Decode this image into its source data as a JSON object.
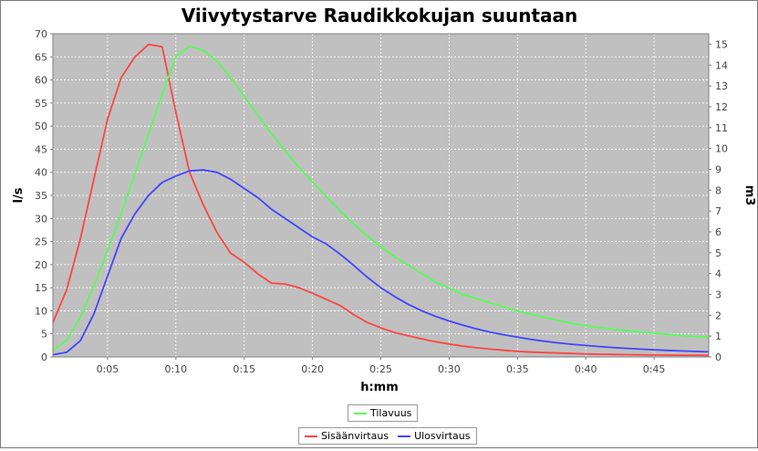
{
  "chart_data": {
    "type": "line",
    "title": "Viivytystarve Raudikkokujan suuntaan",
    "xlabel": "h:mm",
    "ylabel_left": "l/s",
    "ylabel_right": "m3",
    "x_unit": "minutes",
    "xlim": [
      1,
      49
    ],
    "ylim_left": [
      0,
      70
    ],
    "ylim_right": [
      0,
      15.5
    ],
    "xticks": [
      5,
      10,
      15,
      20,
      25,
      30,
      35,
      40,
      45
    ],
    "xtick_labels": [
      "0:05",
      "0:10",
      "0:15",
      "0:20",
      "0:25",
      "0:30",
      "0:35",
      "0:40",
      "0:45"
    ],
    "yticks_left": [
      0,
      5,
      10,
      15,
      20,
      25,
      30,
      35,
      40,
      45,
      50,
      55,
      60,
      65,
      70
    ],
    "yticks_right": [
      0,
      1,
      2,
      3,
      4,
      5,
      6,
      7,
      8,
      9,
      10,
      11,
      12,
      13,
      14,
      15
    ],
    "grid": true,
    "legend_position": "bottom",
    "series": [
      {
        "name": "Tilavuus",
        "axis": "right",
        "color": "#55ff55",
        "x": [
          1,
          2,
          3,
          4,
          5,
          6,
          7,
          8,
          9,
          10,
          11,
          12,
          13,
          14,
          15,
          16,
          17,
          18,
          19,
          20,
          21,
          22,
          23,
          24,
          25,
          26,
          27,
          28,
          29,
          30,
          31,
          32,
          33,
          34,
          35,
          36,
          37,
          38,
          39,
          40,
          41,
          42,
          43,
          44,
          45,
          46,
          47,
          48,
          49
        ],
        "y": [
          0.3,
          0.8,
          1.9,
          3.4,
          5.1,
          6.9,
          8.8,
          10.7,
          12.6,
          14.4,
          14.9,
          14.7,
          14.2,
          13.4,
          12.5,
          11.6,
          10.7,
          9.9,
          9.1,
          8.4,
          7.7,
          7.0,
          6.4,
          5.8,
          5.3,
          4.8,
          4.4,
          4.0,
          3.6,
          3.3,
          3.0,
          2.8,
          2.6,
          2.4,
          2.2,
          2.05,
          1.9,
          1.75,
          1.6,
          1.5,
          1.4,
          1.33,
          1.26,
          1.2,
          1.14,
          1.08,
          1.03,
          0.98,
          0.94
        ]
      },
      {
        "name": "Sisäänvirtaus",
        "axis": "left",
        "color": "#ff4444",
        "x": [
          1,
          2,
          3,
          4,
          5,
          6,
          7,
          8,
          9,
          10,
          11,
          12,
          13,
          14,
          15,
          16,
          17,
          18,
          19,
          20,
          21,
          22,
          23,
          24,
          25,
          26,
          27,
          28,
          29,
          30,
          31,
          32,
          33,
          34,
          35,
          36,
          37,
          38,
          39,
          40,
          41,
          42,
          43,
          44,
          45,
          46,
          47,
          48,
          49
        ],
        "y": [
          7.5,
          14.5,
          25.5,
          38.5,
          51.5,
          60.5,
          65,
          67.7,
          67.2,
          53,
          40,
          33,
          27,
          22.5,
          20.5,
          18,
          16,
          15.8,
          15,
          13.8,
          12.5,
          11.2,
          9.2,
          7.5,
          6.3,
          5.3,
          4.6,
          3.9,
          3.3,
          2.8,
          2.35,
          2,
          1.7,
          1.45,
          1.2,
          1.05,
          0.95,
          0.85,
          0.75,
          0.65,
          0.6,
          0.55,
          0.5,
          0.45,
          0.42,
          0.4,
          0.37,
          0.35,
          0.33
        ]
      },
      {
        "name": "Ulosvirtaus",
        "axis": "left",
        "color": "#4444ff",
        "x": [
          1,
          2,
          3,
          4,
          5,
          6,
          7,
          8,
          9,
          10,
          11,
          12,
          13,
          14,
          15,
          16,
          17,
          18,
          19,
          20,
          21,
          22,
          23,
          24,
          25,
          26,
          27,
          28,
          29,
          30,
          31,
          32,
          33,
          34,
          35,
          36,
          37,
          38,
          39,
          40,
          41,
          42,
          43,
          44,
          45,
          46,
          47,
          48,
          49
        ],
        "y": [
          0.5,
          1,
          3.5,
          9.3,
          17.5,
          25.7,
          31,
          35,
          37.8,
          39.2,
          40.3,
          40.5,
          40,
          38.5,
          36.5,
          34.5,
          32,
          30,
          28,
          26,
          24.5,
          22.3,
          19.9,
          17.3,
          15,
          13.1,
          11.4,
          10,
          8.8,
          7.8,
          6.9,
          6.1,
          5.4,
          4.8,
          4.3,
          3.8,
          3.4,
          3.05,
          2.75,
          2.5,
          2.25,
          2.05,
          1.85,
          1.7,
          1.55,
          1.42,
          1.3,
          1.2,
          1.1
        ]
      }
    ]
  }
}
